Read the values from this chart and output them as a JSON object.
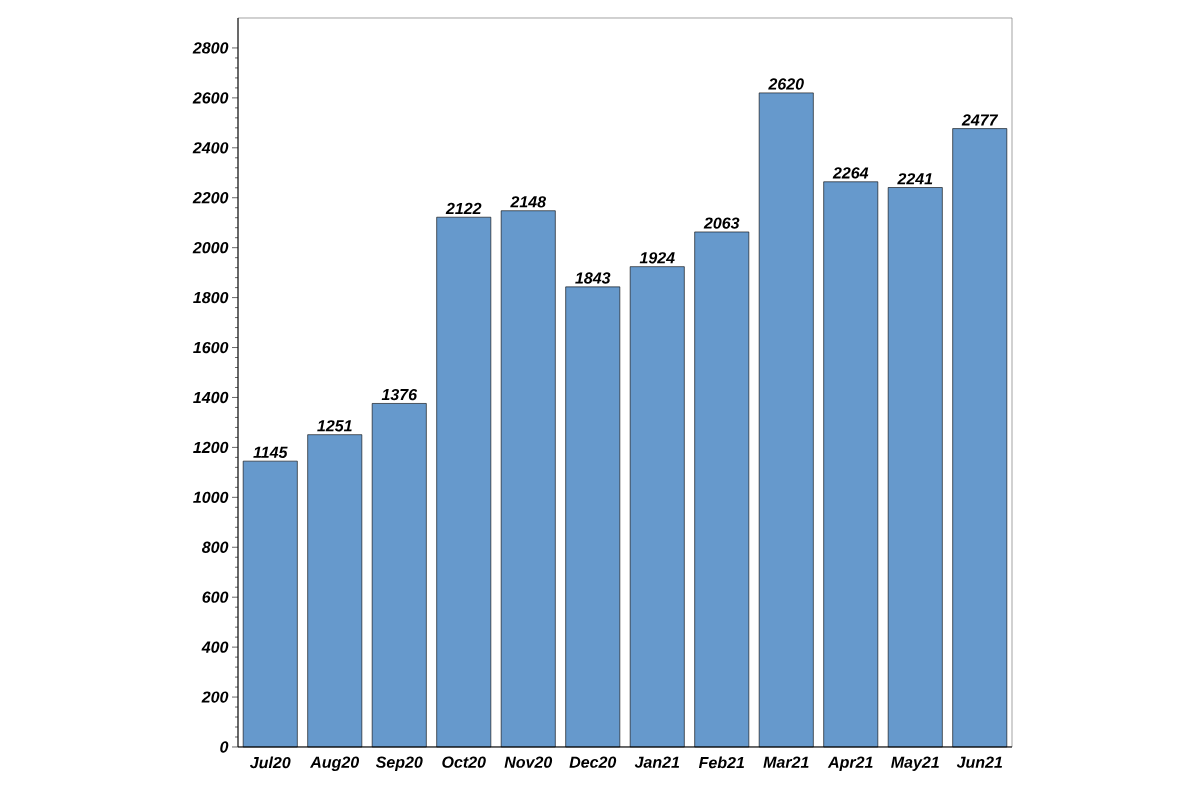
{
  "chart_data": {
    "type": "bar",
    "categories": [
      "Jul20",
      "Aug20",
      "Sep20",
      "Oct20",
      "Nov20",
      "Dec20",
      "Jan21",
      "Feb21",
      "Mar21",
      "Apr21",
      "May21",
      "Jun21"
    ],
    "values": [
      1145,
      1251,
      1376,
      2122,
      2148,
      1843,
      1924,
      2063,
      2620,
      2264,
      2241,
      2477
    ],
    "color": "#6699cc",
    "data_labels": true,
    "ylim": [
      0,
      2920
    ],
    "yticks": [
      0,
      200,
      400,
      600,
      800,
      1000,
      1200,
      1400,
      1600,
      1800,
      2000,
      2200,
      2400,
      2600,
      2800
    ],
    "grid": false
  }
}
